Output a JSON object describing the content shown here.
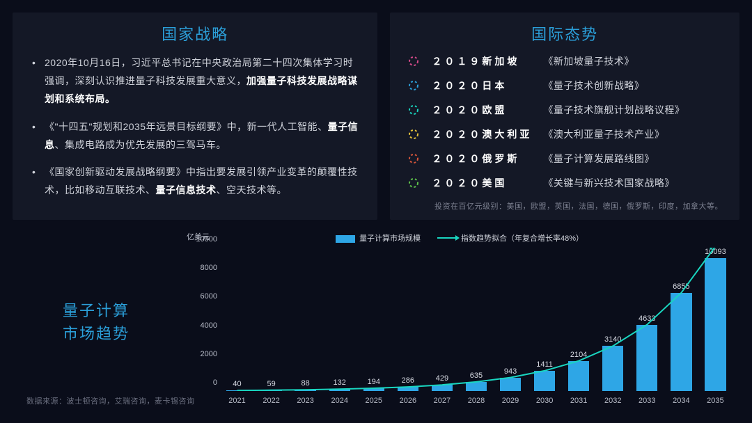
{
  "colors": {
    "background": "#0a0d1a",
    "panel": "#141826",
    "accent": "#2b9fd9",
    "bar": "#2ea6e6",
    "trend": "#19d6c0",
    "text": "#cfd2da",
    "muted": "#7c8090"
  },
  "left_panel": {
    "title": "国家战略",
    "bullets_html": [
      "2020年10月16日，习近平总书记在中央政治局第二十四次集体学习时强调，深刻认识推进量子科技发展重大意义，<b>加强量子科技发展战略谋划和系统布局。</b>",
      "《\"十四五\"规划和2035年远景目标纲要》中，新一代人工智能、<b>量子信息</b>、集成电路成为优先发展的三驾马车。",
      "《国家创新驱动发展战略纲要》中指出要发展引领产业变革的颠覆性技术，比如移动互联技术、<b>量子信息技术</b>、空天技术等。"
    ]
  },
  "right_panel": {
    "title": "国际态势",
    "icon_colors": [
      "#d64a8a",
      "#2b9fd9",
      "#19d6c0",
      "#e6c23a",
      "#d6553a",
      "#5ec24a"
    ],
    "rows": [
      {
        "year": "２０１９新加坡",
        "doc": "《新加坡量子技术》"
      },
      {
        "year": "２０２０日本",
        "doc": "《量子技术创新战略》"
      },
      {
        "year": "２０２０欧盟",
        "doc": "《量子技术旗舰计划战略议程》"
      },
      {
        "year": "２０２０澳大利亚",
        "doc": "《澳大利亚量子技术产业》"
      },
      {
        "year": "２０２０俄罗斯",
        "doc": "《量子计算发展路线图》"
      },
      {
        "year": "２０２０美国",
        "doc": "《关键与新兴技术国家战略》"
      }
    ],
    "footnote": "投资在百亿元级别：美国，欧盟，英国，法国，德国，俄罗斯，印度，加拿大等。"
  },
  "chart": {
    "label_line1": "量子计算",
    "label_line2": "市场趋势",
    "source": "数据来源：波士顿咨询，艾瑞咨询，麦卡锡咨询",
    "type": "bar+line",
    "y_unit": "亿美元",
    "legend_bar": "量子计算市场规模",
    "legend_line": "指数趋势拟合（年复合增长率48%）",
    "ylim": [
      0,
      10000
    ],
    "ytick_step": 2000,
    "yticks": [
      0,
      2000,
      4000,
      6000,
      8000,
      10000
    ],
    "categories": [
      "2021",
      "2022",
      "2023",
      "2024",
      "2025",
      "2026",
      "2027",
      "2028",
      "2029",
      "2030",
      "2031",
      "2032",
      "2033",
      "2034",
      "2035"
    ],
    "values": [
      40,
      59,
      88,
      132,
      194,
      286,
      429,
      635,
      943,
      1411,
      2104,
      3140,
      4633,
      6855,
      10093
    ],
    "bar_color": "#2ea6e6",
    "trend_line_color": "#19d6c0",
    "background_color": "#0a0d1a",
    "bar_width": 0.62,
    "label_fontsize": 11
  }
}
